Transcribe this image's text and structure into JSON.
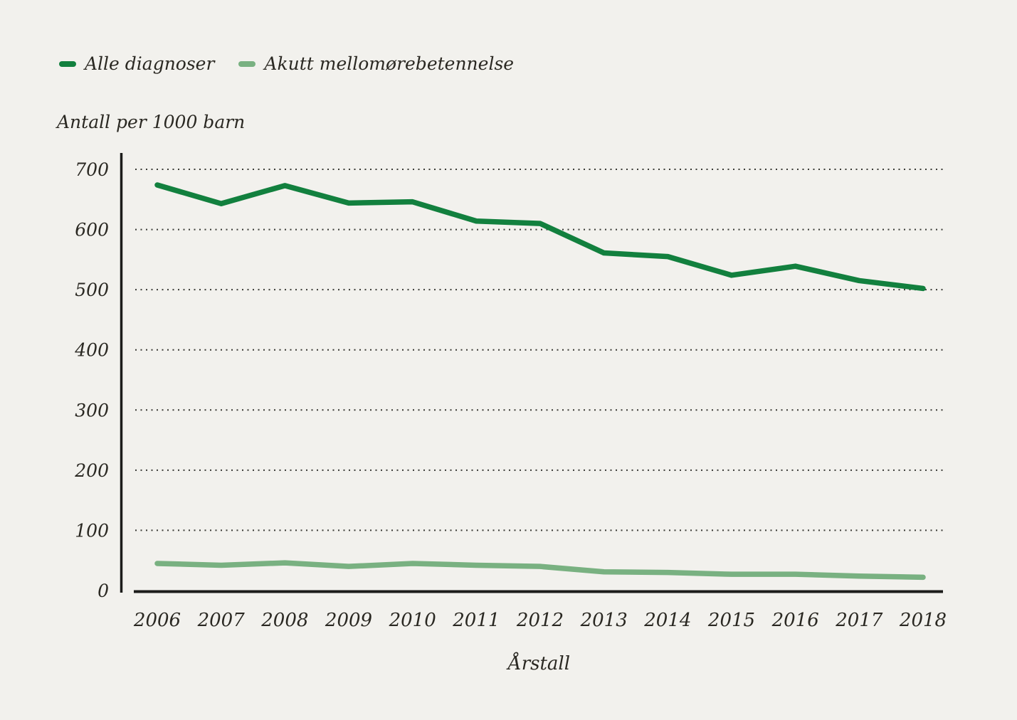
{
  "chart_data": {
    "type": "line",
    "x": [
      2006,
      2007,
      2008,
      2009,
      2010,
      2011,
      2012,
      2013,
      2014,
      2015,
      2016,
      2017,
      2018
    ],
    "series": [
      {
        "name": "Alle diagnoser",
        "color": "#12803e",
        "values": [
          674,
          643,
          673,
          644,
          646,
          614,
          610,
          561,
          555,
          524,
          539,
          515,
          502
        ]
      },
      {
        "name": "Akutt mellomørebetennelse",
        "color": "#79b181",
        "values": [
          45,
          42,
          46,
          40,
          45,
          42,
          40,
          31,
          30,
          27,
          27,
          24,
          22
        ]
      }
    ],
    "xlabel": "Årstall",
    "ylabel": "Antall per 1000 barn",
    "ylim": [
      0,
      700
    ],
    "yticks": [
      0,
      100,
      200,
      300,
      400,
      500,
      600,
      700
    ],
    "grid": "horizontal-dotted",
    "legend_position": "top-left"
  },
  "colors": {
    "background": "#f2f1ed",
    "axis": "#1c1c1a",
    "gridline_dots": "#3a3a35",
    "text": "#2a2822",
    "series_dark_green": "#12803e",
    "series_light_green": "#79b181"
  }
}
